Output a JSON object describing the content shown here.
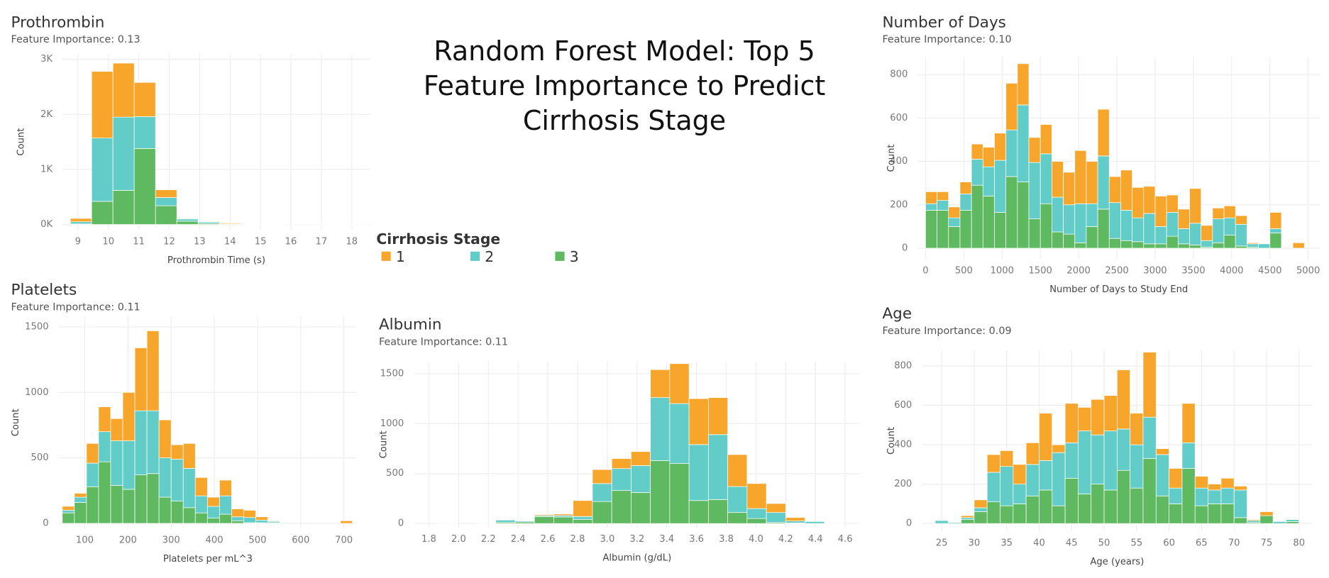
{
  "title": "Random Forest Model: Top 5 Feature Importance to Predict Cirrhosis Stage",
  "legend_title": "Cirrhosis Stage",
  "chart_data": [
    {
      "type": "histogram",
      "title": "Prothrombin",
      "subtitle": "Feature Importance: 0.13",
      "x_label": "Prothrombin Time (s)",
      "y_label": "Count",
      "grid": true,
      "bins": [
        8.75,
        9.45,
        10.15,
        10.85,
        11.55,
        12.25,
        12.95,
        13.65,
        14.35,
        15.05,
        15.75,
        16.45,
        17.15,
        17.85,
        18.55
      ],
      "series": [
        {
          "name": "1",
          "color": "#f7a52b",
          "values": [
            60,
            1210,
            980,
            620,
            140,
            10,
            10,
            15,
            2,
            0,
            0,
            0,
            1,
            5
          ]
        },
        {
          "name": "2",
          "color": "#62ccc8",
          "values": [
            40,
            1150,
            1330,
            580,
            150,
            40,
            25,
            5,
            1,
            1,
            1,
            1,
            2,
            10
          ]
        },
        {
          "name": "3",
          "color": "#5fb960",
          "values": [
            10,
            420,
            620,
            1380,
            340,
            60,
            20,
            5,
            2,
            1,
            0,
            0,
            2,
            5
          ]
        }
      ],
      "xlim": [
        8.5,
        18.6
      ],
      "xticks": [
        9,
        10,
        11,
        12,
        13,
        14,
        15,
        16,
        17,
        18
      ],
      "ylim": [
        -100,
        3100
      ],
      "yticks": [
        {
          "value": 0,
          "label": "0K"
        },
        {
          "value": 1000,
          "label": "1K"
        },
        {
          "value": 2000,
          "label": "2K"
        },
        {
          "value": 3000,
          "label": "3K"
        }
      ]
    },
    {
      "type": "histogram",
      "title": "Number of Days",
      "subtitle": "Feature Importance: 0.10",
      "x_label": "Number of Days to Study End",
      "y_label": "Count",
      "grid": true,
      "bins": [
        0,
        150,
        300,
        450,
        600,
        750,
        900,
        1050,
        1200,
        1350,
        1500,
        1650,
        1800,
        1950,
        2100,
        2250,
        2400,
        2550,
        2700,
        2850,
        3000,
        3150,
        3300,
        3450,
        3600,
        3750,
        3900,
        4050,
        4200,
        4350,
        4500,
        4650,
        4800,
        4950,
        5100
      ],
      "series": [
        {
          "name": "1",
          "color": "#f7a52b",
          "values": [
            55,
            40,
            50,
            55,
            70,
            90,
            125,
            215,
            190,
            115,
            135,
            165,
            150,
            245,
            195,
            215,
            120,
            185,
            140,
            125,
            140,
            80,
            90,
            160,
            70,
            50,
            55,
            40,
            5,
            0,
            75,
            0,
            25,
            0
          ]
        },
        {
          "name": "2",
          "color": "#62ccc8",
          "values": [
            30,
            45,
            40,
            75,
            120,
            135,
            240,
            215,
            355,
            260,
            230,
            160,
            135,
            180,
            105,
            245,
            165,
            140,
            110,
            140,
            80,
            110,
            70,
            100,
            30,
            110,
            80,
            100,
            15,
            20,
            20,
            0,
            0,
            0
          ]
        },
        {
          "name": "3",
          "color": "#5fb960",
          "values": [
            175,
            175,
            100,
            175,
            290,
            240,
            165,
            330,
            305,
            135,
            205,
            75,
            65,
            25,
            100,
            180,
            45,
            35,
            30,
            20,
            20,
            55,
            20,
            15,
            5,
            25,
            60,
            10,
            5,
            0,
            70,
            0,
            0,
            0
          ]
        }
      ],
      "xlim": [
        -100,
        5150
      ],
      "xticks": [
        0,
        500,
        1000,
        1500,
        2000,
        2500,
        3000,
        3500,
        4000,
        4500,
        5000
      ],
      "ylim": [
        -50,
        880
      ],
      "yticks": [
        0,
        200,
        400,
        600,
        800
      ]
    },
    {
      "type": "histogram",
      "title": "Platelets",
      "subtitle": "Feature Importance: 0.11",
      "x_label": "Platelets per mL^3",
      "y_label": "Count",
      "grid": true,
      "bins": [
        48,
        76,
        104,
        132,
        160,
        188,
        216,
        244,
        272,
        300,
        328,
        356,
        384,
        412,
        440,
        468,
        496,
        524,
        552,
        580,
        608,
        636,
        664,
        692,
        720
      ],
      "series": [
        {
          "name": "1",
          "color": "#f7a52b",
          "values": [
            30,
            30,
            150,
            190,
            170,
            370,
            480,
            610,
            290,
            110,
            190,
            140,
            70,
            120,
            60,
            55,
            25,
            5,
            0,
            0,
            0,
            0,
            0,
            20
          ]
        },
        {
          "name": "2",
          "color": "#62ccc8",
          "values": [
            20,
            40,
            180,
            230,
            340,
            370,
            490,
            480,
            300,
            320,
            300,
            130,
            90,
            140,
            30,
            40,
            20,
            10,
            5,
            0,
            0,
            0,
            0,
            0
          ]
        },
        {
          "name": "3",
          "color": "#5fb960",
          "values": [
            80,
            160,
            280,
            470,
            290,
            260,
            370,
            380,
            200,
            170,
            120,
            80,
            40,
            70,
            20,
            5,
            5,
            5,
            0,
            0,
            0,
            0,
            0,
            0
          ]
        }
      ],
      "xlim": [
        40,
        730
      ],
      "xticks": [
        100,
        200,
        300,
        400,
        500,
        600,
        700
      ],
      "ylim": [
        -40,
        1580
      ],
      "yticks": [
        0,
        500,
        1000,
        1500
      ]
    },
    {
      "type": "histogram",
      "title": "Albumin",
      "subtitle": "Feature Importance: 0.11",
      "x_label": "Albumin (g/dL)",
      "y_label": "Count",
      "grid": true,
      "bins": [
        1.86,
        1.99,
        2.12,
        2.25,
        2.38,
        2.51,
        2.64,
        2.77,
        2.9,
        3.03,
        3.16,
        3.29,
        3.42,
        3.55,
        3.68,
        3.81,
        3.94,
        4.07,
        4.2,
        4.33,
        4.46,
        4.59
      ],
      "series": [
        {
          "name": "1",
          "color": "#f7a52b",
          "values": [
            0,
            0,
            0,
            5,
            5,
            10,
            15,
            160,
            140,
            100,
            140,
            280,
            400,
            460,
            370,
            320,
            250,
            90,
            35,
            0,
            0
          ]
        },
        {
          "name": "2",
          "color": "#62ccc8",
          "values": [
            5,
            0,
            5,
            25,
            10,
            10,
            15,
            30,
            180,
            220,
            270,
            630,
            600,
            560,
            650,
            260,
            100,
            100,
            20,
            20,
            5
          ]
        },
        {
          "name": "3",
          "color": "#5fb960",
          "values": [
            0,
            0,
            0,
            10,
            15,
            70,
            65,
            40,
            220,
            330,
            310,
            630,
            600,
            230,
            240,
            110,
            50,
            10,
            5,
            0,
            0
          ]
        }
      ],
      "xlim": [
        1.7,
        4.7
      ],
      "xticks": [
        1.8,
        {
          "value": 2,
          "label": "2.0"
        },
        2.2,
        2.4,
        2.6,
        2.8,
        {
          "value": 3,
          "label": "3.0"
        },
        3.2,
        3.4,
        3.6,
        3.8,
        {
          "value": 4,
          "label": "4.0"
        },
        4.2,
        4.4,
        4.6
      ],
      "ylim": [
        -40,
        1620
      ],
      "yticks": [
        0,
        500,
        1000,
        1500
      ]
    },
    {
      "type": "histogram",
      "title": "Age",
      "subtitle": "Feature Importance: 0.09",
      "x_label": "Age (years)",
      "y_label": "Count",
      "grid": true,
      "bins": [
        24,
        26,
        28,
        30,
        32,
        34,
        36,
        38,
        40,
        42,
        44,
        46,
        48,
        50,
        52,
        54,
        56,
        58,
        60,
        62,
        64,
        66,
        68,
        70,
        72,
        74,
        76,
        78,
        80
      ],
      "series": [
        {
          "name": "1",
          "color": "#f7a52b",
          "values": [
            0,
            0,
            10,
            40,
            90,
            80,
            100,
            110,
            240,
            40,
            200,
            120,
            180,
            180,
            300,
            160,
            330,
            30,
            100,
            200,
            60,
            30,
            50,
            20,
            5,
            20,
            0,
            0
          ]
        },
        {
          "name": "2",
          "color": "#62ccc8",
          "values": [
            15,
            5,
            10,
            20,
            150,
            200,
            100,
            160,
            150,
            270,
            180,
            320,
            250,
            300,
            210,
            220,
            210,
            210,
            80,
            130,
            90,
            70,
            80,
            140,
            10,
            0,
            10,
            10
          ]
        },
        {
          "name": "3",
          "color": "#5fb960",
          "values": [
            0,
            0,
            20,
            60,
            110,
            90,
            100,
            140,
            170,
            90,
            230,
            150,
            200,
            170,
            270,
            180,
            330,
            140,
            100,
            280,
            90,
            100,
            100,
            30,
            5,
            40,
            0,
            10
          ]
        }
      ],
      "xlim": [
        22,
        82
      ],
      "xticks": [
        25,
        30,
        35,
        40,
        45,
        50,
        55,
        60,
        65,
        70,
        75,
        80
      ],
      "ylim": [
        -40,
        880
      ],
      "yticks": [
        0,
        200,
        400,
        600,
        800
      ]
    }
  ]
}
